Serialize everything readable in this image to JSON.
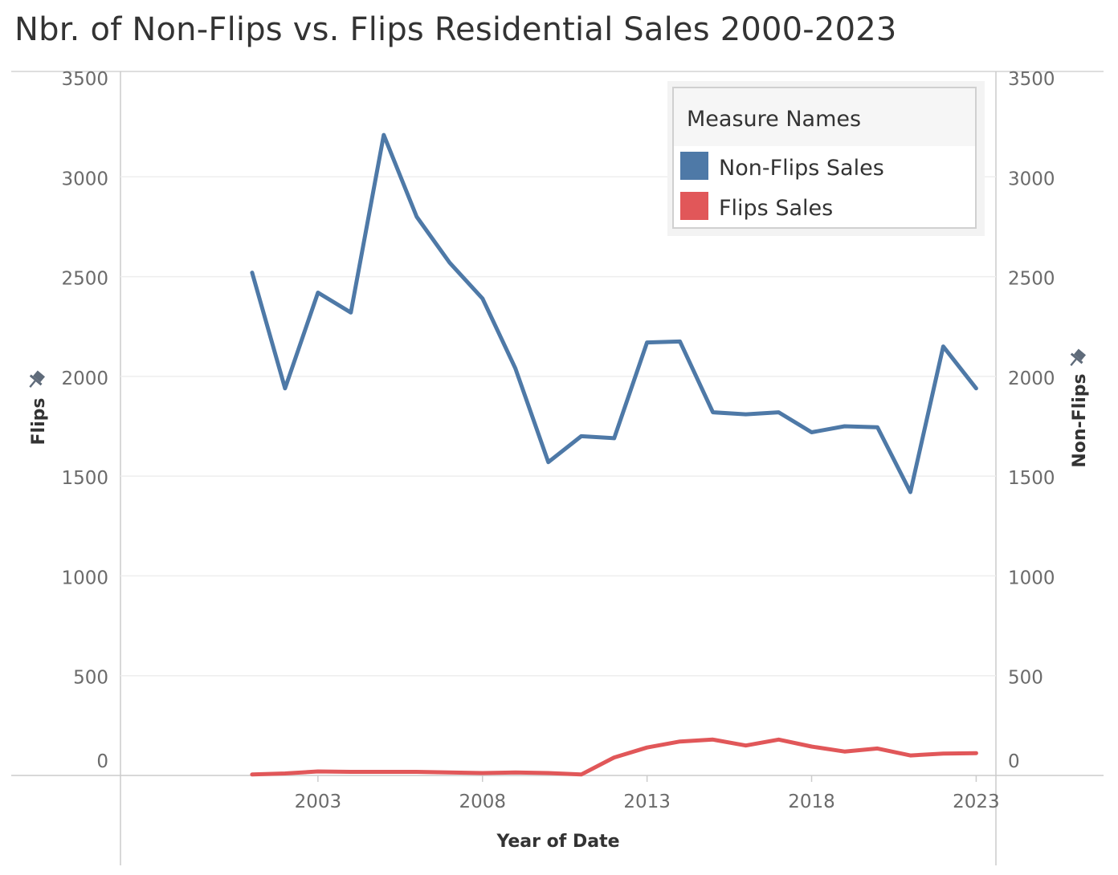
{
  "chart_data": {
    "type": "line",
    "title": "Nbr. of Non-Flips vs. Flips Residential Sales 2000-2023",
    "xlabel": "Year of Date",
    "ylabel_left": "Flips",
    "ylabel_right": "Non-Flips",
    "x": [
      2001,
      2002,
      2003,
      2004,
      2005,
      2006,
      2007,
      2008,
      2009,
      2010,
      2011,
      2012,
      2013,
      2014,
      2015,
      2016,
      2017,
      2018,
      2019,
      2020,
      2021,
      2022,
      2023
    ],
    "x_ticks": [
      2003,
      2008,
      2013,
      2018,
      2023
    ],
    "xlim": [
      1997,
      2023.6
    ],
    "ylim": [
      0,
      3500
    ],
    "y_ticks": [
      0,
      500,
      1000,
      1500,
      2000,
      2500,
      3000,
      3500
    ],
    "series": [
      {
        "name": "Non-Flips Sales",
        "color": "#4e79a7",
        "values": [
          2520,
          1940,
          2420,
          2320,
          3210,
          2800,
          2570,
          2390,
          2040,
          1570,
          1700,
          1690,
          2170,
          2175,
          1820,
          1810,
          1820,
          1720,
          1750,
          1745,
          1420,
          2150,
          1940
        ]
      },
      {
        "name": "Flips Sales",
        "color": "#e15759",
        "values": [
          5,
          10,
          20,
          18,
          18,
          18,
          15,
          12,
          15,
          12,
          5,
          90,
          140,
          170,
          180,
          150,
          180,
          145,
          120,
          135,
          100,
          110,
          112
        ]
      }
    ],
    "grid": true,
    "legend": {
      "title": "Measure Names",
      "placement": "top-right"
    }
  }
}
